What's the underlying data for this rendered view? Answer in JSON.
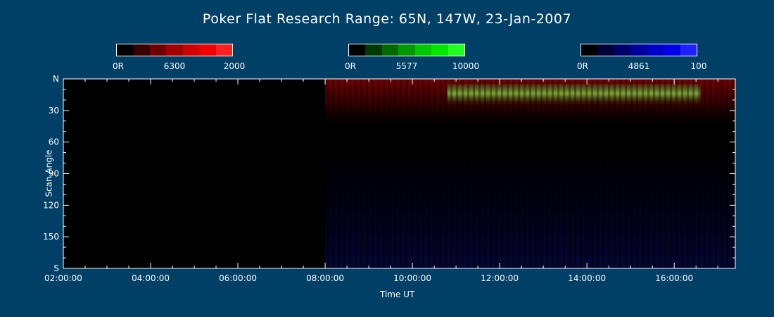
{
  "title": "Poker Flat Research Range: 65N, 147W, 23-Jan-2007",
  "colorbars": [
    {
      "low": "0R",
      "mid": "6300",
      "high": "2000",
      "colors": [
        "#000000",
        "#3a0000",
        "#6e0000",
        "#a00000",
        "#cf0000",
        "#f00000",
        "#ff2020"
      ]
    },
    {
      "low": "0R",
      "mid": "5577",
      "high": "10000",
      "colors": [
        "#000000",
        "#003a00",
        "#006a00",
        "#009a00",
        "#00c800",
        "#00e800",
        "#20ff20"
      ]
    },
    {
      "low": "0R",
      "mid": "4861",
      "high": "100",
      "colors": [
        "#000000",
        "#00003a",
        "#00006a",
        "#00009a",
        "#0000c8",
        "#0000e8",
        "#2020ff"
      ]
    }
  ],
  "chart_data": {
    "type": "heatmap",
    "title": "Poker Flat Research Range: 65N, 147W, 23-Jan-2007",
    "xlabel": "Time UT",
    "ylabel": "Scan Angle",
    "x_range_hours": [
      2.0,
      17.4
    ],
    "x_ticks": [
      "02:00:00",
      "04:00:00",
      "06:00:00",
      "08:00:00",
      "10:00:00",
      "12:00:00",
      "14:00:00",
      "16:00:00"
    ],
    "y_range": [
      0,
      180
    ],
    "y_ticks": [
      "N",
      "30",
      "60",
      "90",
      "120",
      "150",
      "S"
    ],
    "data_start_hour": 8.0,
    "regions": [
      {
        "emission": "6300",
        "color": "#b00000",
        "scan_angle": [
          0,
          45
        ],
        "hours": [
          8.0,
          17.4
        ],
        "note": "red striated emission near north horizon"
      },
      {
        "emission": "5577",
        "color": "#33cc33",
        "scan_angle": [
          5,
          25
        ],
        "hours": [
          10.8,
          16.6
        ],
        "note": "green emission band"
      },
      {
        "emission": "4861",
        "color": "#1a1a99",
        "scan_angle": [
          60,
          180
        ],
        "hours": [
          8.0,
          17.4
        ],
        "note": "faint blue noise"
      }
    ]
  }
}
